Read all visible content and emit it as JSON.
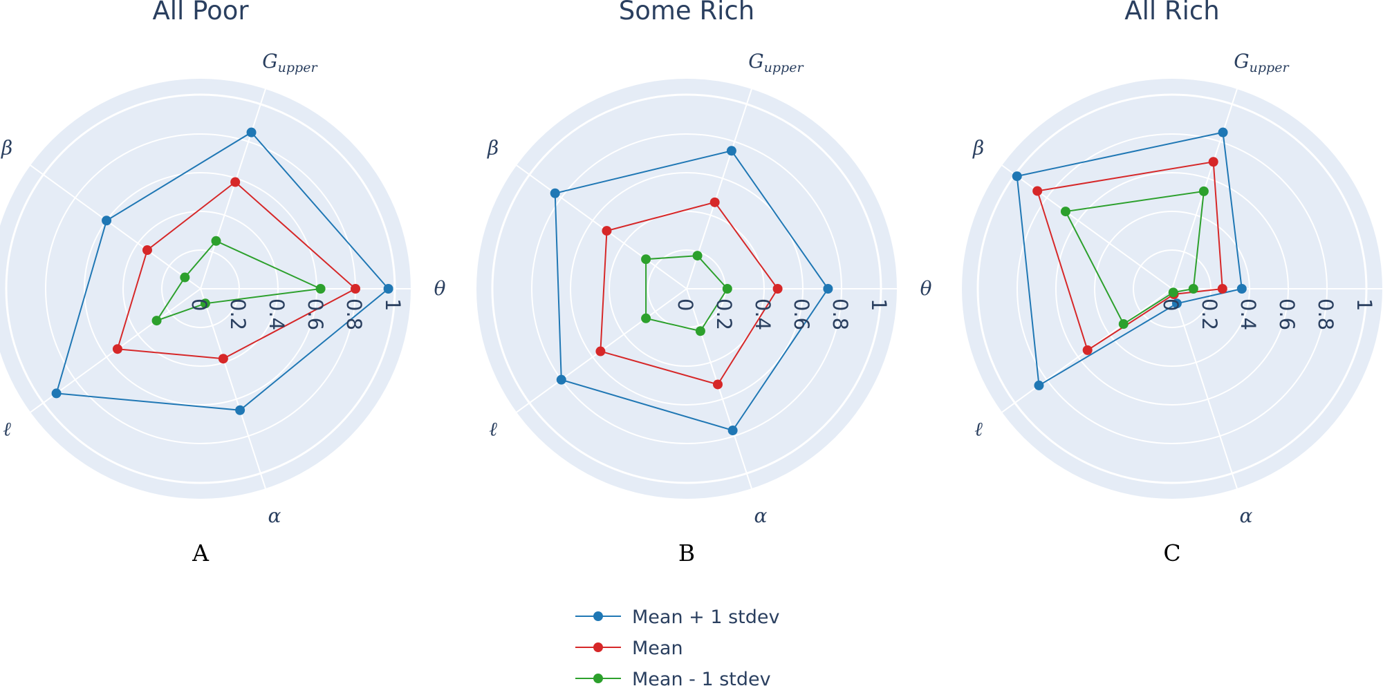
{
  "chart_data": [
    {
      "type": "radar",
      "title": "All Poor",
      "panel_label": "A",
      "axes": [
        "θ",
        "Gupper",
        "β",
        "ℓ",
        "α"
      ],
      "tick_labels": [
        "0",
        "0.2",
        "0.4",
        "0.6",
        "0.8",
        "1"
      ],
      "rlim": [
        0,
        1
      ],
      "series": [
        {
          "name": "Mean + 1 stdev",
          "values": [
            0.97,
            0.85,
            0.6,
            0.92,
            0.66
          ]
        },
        {
          "name": "Mean",
          "values": [
            0.8,
            0.58,
            0.34,
            0.53,
            0.38
          ]
        },
        {
          "name": "Mean - 1 stdev",
          "values": [
            0.62,
            0.26,
            0.1,
            0.28,
            0.08
          ]
        }
      ]
    },
    {
      "type": "radar",
      "title": "Some Rich",
      "panel_label": "B",
      "axes": [
        "θ",
        "Gupper",
        "β",
        "ℓ",
        "α"
      ],
      "tick_labels": [
        "0",
        "0.2",
        "0.4",
        "0.6",
        "0.8",
        "1"
      ],
      "rlim": [
        0,
        1
      ],
      "series": [
        {
          "name": "Mean + 1 stdev",
          "values": [
            0.73,
            0.75,
            0.84,
            0.8,
            0.77
          ]
        },
        {
          "name": "Mean",
          "values": [
            0.47,
            0.47,
            0.51,
            0.55,
            0.52
          ]
        },
        {
          "name": "Mean - 1 stdev",
          "values": [
            0.21,
            0.18,
            0.26,
            0.26,
            0.23
          ]
        }
      ]
    },
    {
      "type": "radar",
      "title": "All Rich",
      "panel_label": "C",
      "axes": [
        "θ",
        "Gupper",
        "β",
        "ℓ",
        "α"
      ],
      "tick_labels": [
        "0",
        "0.2",
        "0.4",
        "0.6",
        "0.8",
        "1"
      ],
      "rlim": [
        0,
        1
      ],
      "series": [
        {
          "name": "Mean + 1 stdev",
          "values": [
            0.36,
            0.85,
            0.99,
            0.85,
            0.08
          ]
        },
        {
          "name": "Mean",
          "values": [
            0.26,
            0.69,
            0.86,
            0.54,
            0.03
          ]
        },
        {
          "name": "Mean - 1 stdev",
          "values": [
            0.11,
            0.53,
            0.68,
            0.31,
            0.02
          ]
        }
      ],
      "series_order_note": ""
    }
  ],
  "legend": [
    {
      "label": "Mean + 1 stdev",
      "color": "#1f77b4"
    },
    {
      "label": "Mean",
      "color": "#d62728"
    },
    {
      "label": "Mean - 1 stdev",
      "color": "#2ca02c"
    }
  ],
  "colors": {
    "plot_bg": "#e5ecf6",
    "grid": "#ffffff",
    "text": "#2a3f5f",
    "series": [
      "#1f77b4",
      "#d62728",
      "#2ca02c"
    ]
  }
}
